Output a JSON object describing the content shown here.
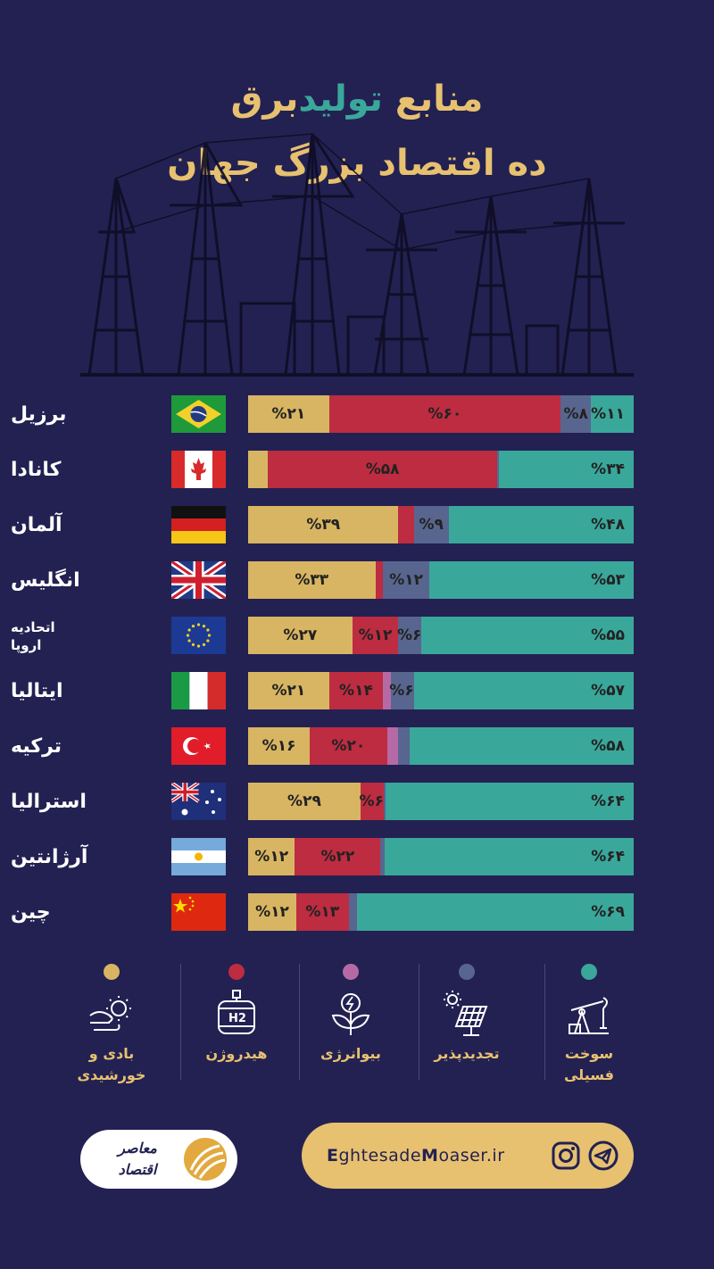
{
  "title": {
    "line1_prefix": "منابع",
    "line1_highlight": "تولید",
    "line1_suffix": "برق",
    "line2": "ده اقتصاد بزرگ جهان"
  },
  "colors": {
    "fossil": "#3aa79b",
    "renewable": "#58668f",
    "bio": "#b56aa6",
    "hydrogen": "#bd2c41",
    "solar_wind": "#d8b562",
    "background": "#232152"
  },
  "chart_data": {
    "type": "bar",
    "orientation": "horizontal-stacked",
    "categories": [
      "برزیل",
      "کانادا",
      "آلمان",
      "انگلیس",
      "اتحادیه اروپا",
      "ایتالیا",
      "ترکیه",
      "استرالیا",
      "آرژانتین",
      "چین"
    ],
    "series": [
      {
        "name": "سوخت فسیلی",
        "values": [
          11,
          34,
          48,
          53,
          55,
          57,
          58,
          64,
          64,
          69
        ],
        "labels": [
          "%۱۱",
          "%۳۴",
          "%۴۸",
          "%۵۳",
          "%۵۵",
          "%۵۷",
          "%۵۸",
          "%۶۴",
          "%۶۴",
          "%۶۹"
        ]
      },
      {
        "name": "تجدیدپذیر",
        "values": [
          8,
          0.5,
          9,
          12,
          6,
          6,
          3,
          0.5,
          1,
          2
        ],
        "labels": [
          "%۸",
          "",
          "%۹",
          "%۱۲",
          "%۶",
          "%۶",
          "",
          "",
          "",
          ""
        ]
      },
      {
        "name": "بیوانرژی",
        "values": [
          0,
          0,
          0,
          0,
          0,
          2,
          3,
          0,
          0,
          0
        ],
        "labels": [
          "",
          "",
          "",
          "",
          "",
          "",
          "",
          "",
          "",
          ""
        ]
      },
      {
        "name": "هیدروژن",
        "values": [
          60,
          58,
          4,
          2,
          12,
          14,
          20,
          6,
          22,
          13
        ],
        "labels": [
          "%۶۰",
          "%۵۸",
          "",
          "",
          "%۱۲",
          "%۱۴",
          "%۲۰",
          "%۶",
          "%۲۲",
          "%۱۳"
        ]
      },
      {
        "name": "بادی و خورشیدی",
        "values": [
          21,
          5,
          39,
          33,
          27,
          21,
          16,
          29,
          12,
          12
        ],
        "labels": [
          "%۲۱",
          "",
          "%۳۹",
          "%۳۳",
          "%۲۷",
          "%۲۱",
          "%۱۶",
          "%۲۹",
          "%۱۲",
          "%۱۲"
        ]
      }
    ]
  },
  "countries": [
    {
      "name": "برزیل",
      "flag": "brazil-flag"
    },
    {
      "name": "کانادا",
      "flag": "canada-flag"
    },
    {
      "name": "آلمان",
      "flag": "germany-flag"
    },
    {
      "name": "انگلیس",
      "flag": "uk-flag"
    },
    {
      "name_line1": "اتحادیه",
      "name_line2": "اروپا",
      "flag": "eu-flag"
    },
    {
      "name": "ایتالیا",
      "flag": "italy-flag"
    },
    {
      "name": "ترکیه",
      "flag": "turkey-flag"
    },
    {
      "name": "استرالیا",
      "flag": "australia-flag"
    },
    {
      "name": "آرژانتین",
      "flag": "argentina-flag"
    },
    {
      "name": "چین",
      "flag": "china-flag"
    }
  ],
  "legend": [
    {
      "label_line1": "سوخت",
      "label_line2": "فسیلی",
      "icon": "oil-pump-icon",
      "color": "#3aa79b"
    },
    {
      "label_line1": "تجدیدپذیر",
      "label_line2": "",
      "icon": "solar-panel-icon",
      "color": "#58668f"
    },
    {
      "label_line1": "بیوانرژی",
      "label_line2": "",
      "icon": "bio-plant-icon",
      "color": "#b56aa6"
    },
    {
      "label_line1": "هیدروژن",
      "label_line2": "",
      "icon": "hydrogen-tank-icon",
      "color": "#bd2c41"
    },
    {
      "label_line1": "بادی و",
      "label_line2": "خورشیدی",
      "icon": "wind-sun-icon",
      "color": "#d8b562"
    }
  ],
  "footer": {
    "logo_text_line1": "اقتصاد",
    "logo_text_line2": "معاصر",
    "url_parts": [
      "E",
      "ghtesade",
      "M",
      "oaser.ir"
    ],
    "social": [
      "instagram-icon",
      "telegram-icon"
    ]
  }
}
